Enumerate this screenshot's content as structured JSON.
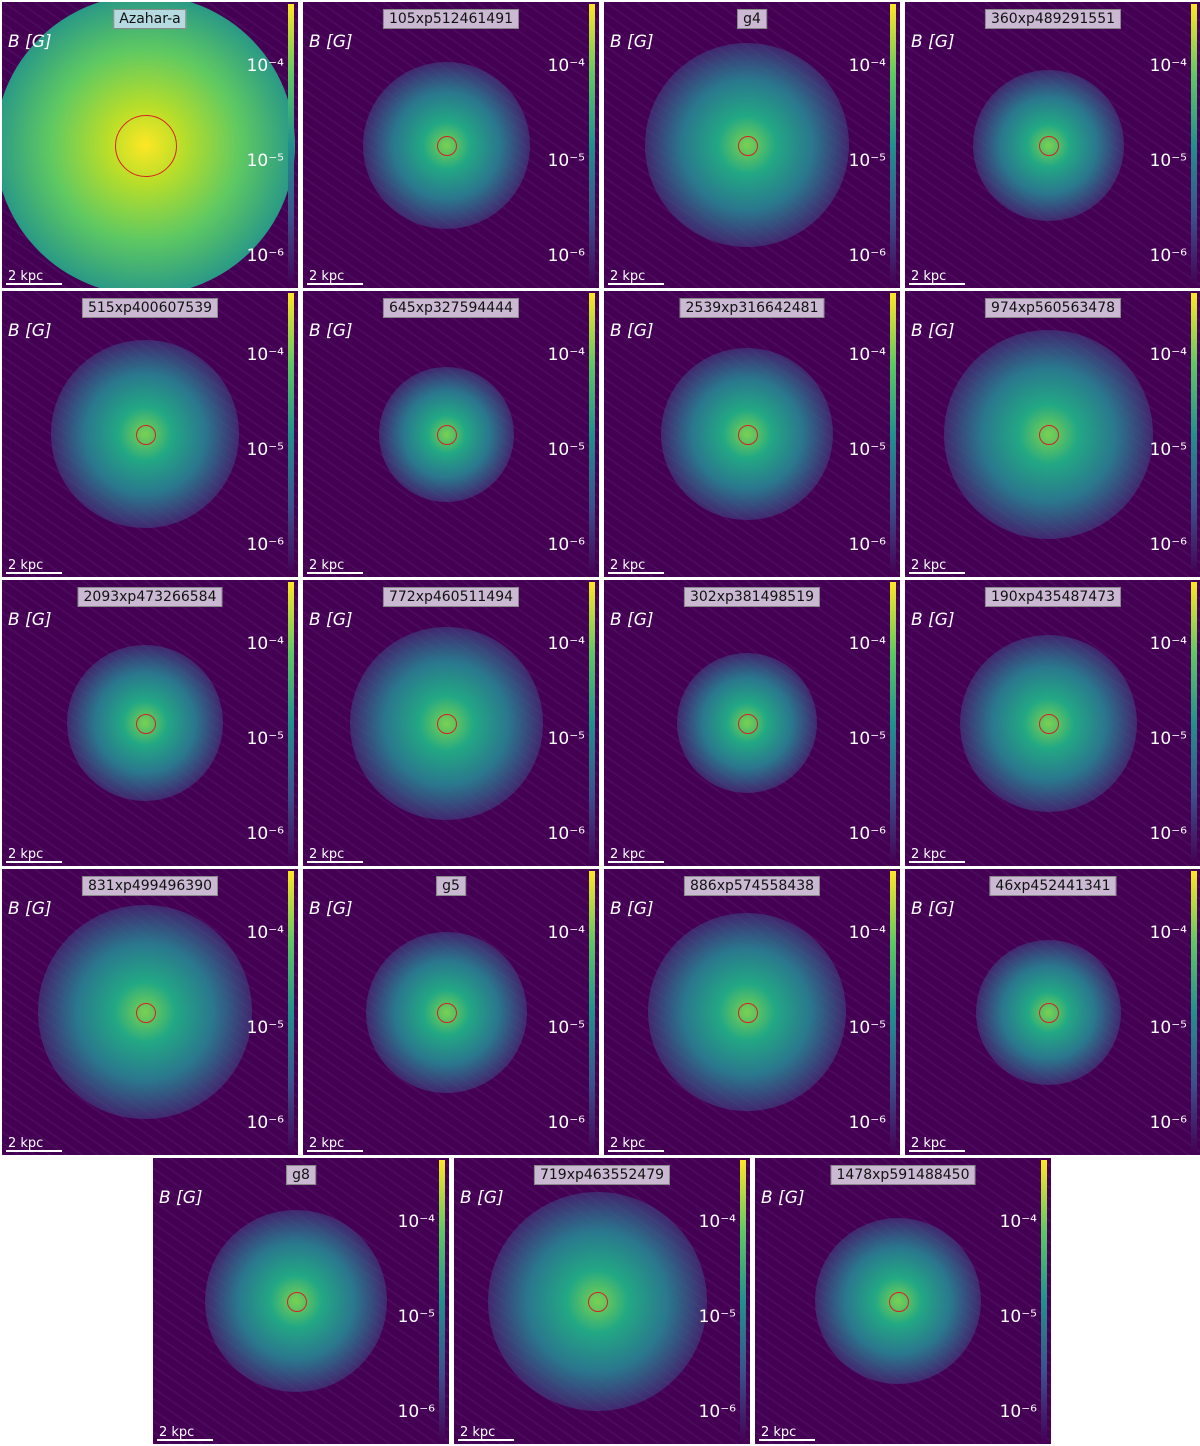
{
  "panels": [
    "Azahar-a",
    "105xp512461491",
    "g4",
    "360xp489291551",
    "515xp400607539",
    "645xp327594444",
    "2539xp316642481",
    "974xp560563478",
    "2093xp473266584",
    "772xp460511494",
    "302xp381498519",
    "190xp435487473",
    "831xp499496390",
    "g5",
    "886xp574558438",
    "46xp452441341",
    "g8",
    "719xp463552479",
    "1478xp591488450"
  ],
  "quantity_label": "B [G]",
  "scale_bar_label": "2 kpc",
  "colorbar_ticks": [
    "10⁻⁴",
    "10⁻⁵",
    "10⁻⁶"
  ]
}
